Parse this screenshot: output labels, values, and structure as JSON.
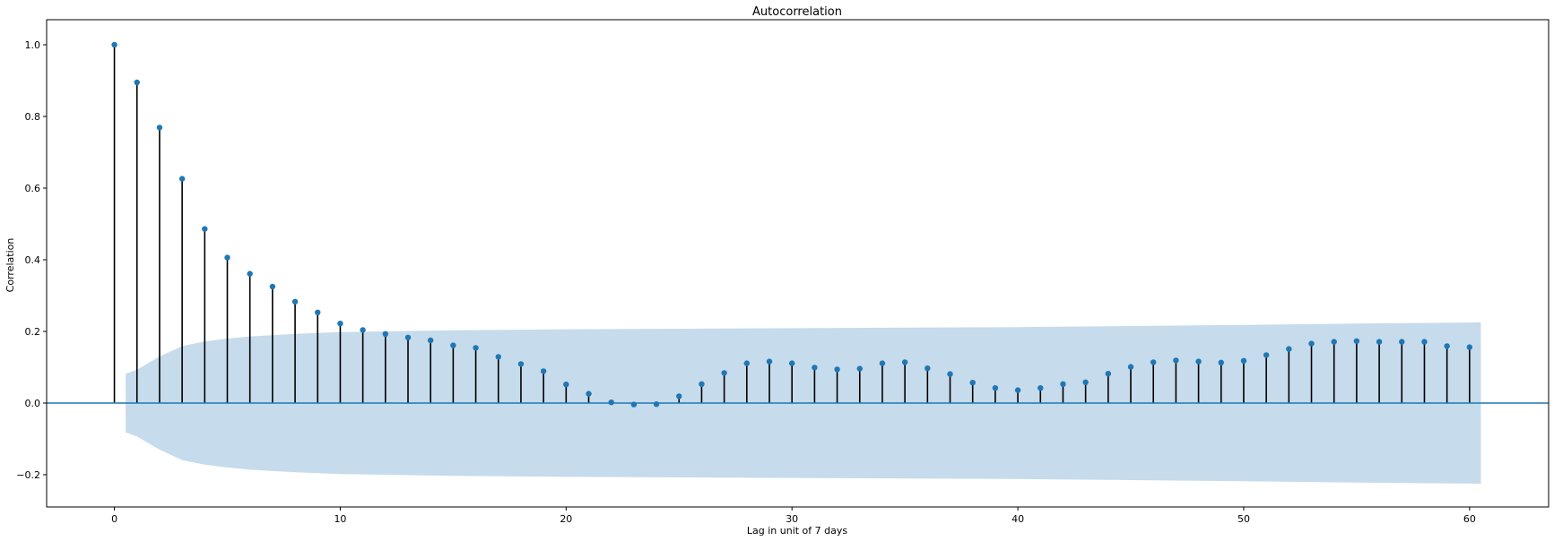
{
  "chart_data": {
    "type": "stem",
    "title": "Autocorrelation",
    "xlabel": "Lag in unit of 7 days",
    "ylabel": "Correlation",
    "xlim": [
      -3,
      63.5
    ],
    "ylim": [
      -0.29,
      1.07
    ],
    "xticks": [
      0,
      10,
      20,
      30,
      40,
      50,
      60
    ],
    "yticks": [
      -0.2,
      0.0,
      0.2,
      0.4,
      0.6,
      0.8,
      1.0
    ],
    "ytick_labels": [
      "−0.2",
      "0.0",
      "0.2",
      "0.4",
      "0.6",
      "0.8",
      "1.0"
    ],
    "lags": [
      0,
      1,
      2,
      3,
      4,
      5,
      6,
      7,
      8,
      9,
      10,
      11,
      12,
      13,
      14,
      15,
      16,
      17,
      18,
      19,
      20,
      21,
      22,
      23,
      24,
      25,
      26,
      27,
      28,
      29,
      30,
      31,
      32,
      33,
      34,
      35,
      36,
      37,
      38,
      39,
      40,
      41,
      42,
      43,
      44,
      45,
      46,
      47,
      48,
      49,
      50,
      51,
      52,
      53,
      54,
      55,
      56,
      57,
      58,
      59,
      60
    ],
    "values": [
      1.0,
      0.895,
      0.769,
      0.626,
      0.486,
      0.406,
      0.361,
      0.325,
      0.283,
      0.253,
      0.222,
      0.204,
      0.193,
      0.183,
      0.175,
      0.161,
      0.154,
      0.129,
      0.109,
      0.089,
      0.052,
      0.026,
      0.002,
      -0.004,
      -0.003,
      0.019,
      0.053,
      0.084,
      0.111,
      0.116,
      0.111,
      0.099,
      0.094,
      0.096,
      0.111,
      0.114,
      0.097,
      0.081,
      0.057,
      0.042,
      0.036,
      0.042,
      0.053,
      0.058,
      0.082,
      0.101,
      0.114,
      0.119,
      0.116,
      0.113,
      0.118,
      0.134,
      0.151,
      0.166,
      0.171,
      0.173,
      0.171,
      0.171,
      0.171,
      0.159,
      0.156
    ],
    "confidence_band": {
      "lags": [
        0.5,
        1,
        2,
        3,
        4,
        5,
        6,
        8,
        10,
        15,
        20,
        30,
        40,
        45,
        50,
        55,
        60.5
      ],
      "upper": [
        0.082,
        0.093,
        0.13,
        0.159,
        0.172,
        0.18,
        0.186,
        0.193,
        0.198,
        0.203,
        0.206,
        0.209,
        0.212,
        0.215,
        0.218,
        0.222,
        0.225
      ]
    },
    "stem_color": "#000000",
    "marker_color": "#1f77b4",
    "band_color": "#c6dbec",
    "zero_line_color": "#1f77b4",
    "grid": false
  }
}
